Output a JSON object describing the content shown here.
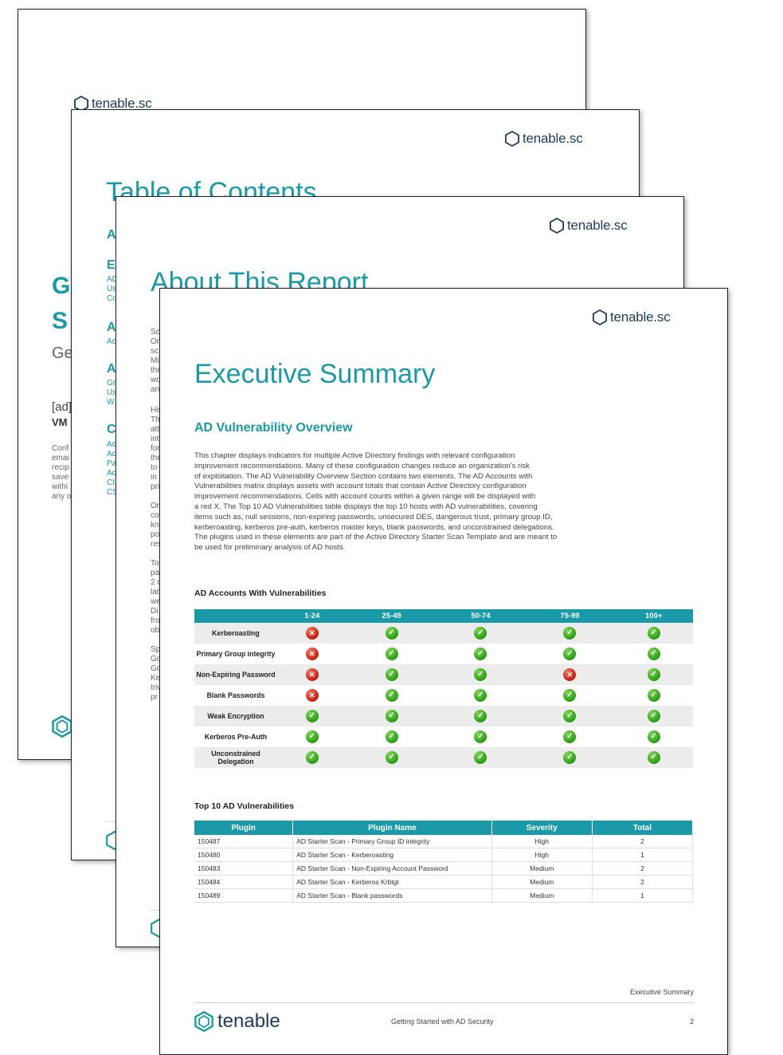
{
  "brand": {
    "logo_text": "tenable.sc",
    "footer_logo_text": "tenable"
  },
  "page1": {
    "frag_g": "G",
    "frag_s": "S",
    "frag_ge": "Ge",
    "frag_ad": "[ad]",
    "frag_vm": "VM",
    "frag_lines": [
      "Conf",
      "emai",
      "recip",
      "save",
      "withi",
      "any o"
    ]
  },
  "page2": {
    "title": "Table of Contents",
    "frag_a1": "A",
    "frag_e": "E",
    "frag_e_lines": [
      "AD",
      "Us",
      "Co"
    ],
    "frag_a2": "A",
    "frag_a2_lines": [
      "Ac"
    ],
    "frag_a3": "A",
    "frag_a3_lines": [
      "Gr",
      "Us",
      "W"
    ],
    "frag_c": "C",
    "frag_c_lines": [
      "Ac",
      "Ac",
      "Pa",
      "Ac",
      "CIS",
      "CS"
    ]
  },
  "page3": {
    "title": "About This Report",
    "frag_lines_1": [
      "Sc",
      "Or",
      "sc",
      "Mi",
      "the",
      "wo",
      "an"
    ],
    "frag_lines_2": [
      "His",
      "Th",
      "att",
      "int",
      "for",
      "the",
      "to",
      "in",
      "pri"
    ],
    "frag_lines_3": [
      "Or",
      "co",
      "kn",
      "po",
      "res"
    ],
    "frag_lines_4": [
      "To",
      "pa",
      "2 c",
      "lat",
      "we",
      "Di",
      "fro",
      "ob"
    ],
    "frag_lines_5": [
      "Sp",
      "Go",
      "Go",
      "Ke",
      "triv",
      "pr"
    ]
  },
  "page4": {
    "title": "Executive Summary",
    "subtitle": "AD Vulnerability Overview",
    "intro_lines": [
      "This chapter displays indicators for multiple Active Directory findings with relevant configuration",
      "improvement recommendations. Many of these configuration changes reduce an organization's risk",
      "of exploitation. The AD Vulnerability Overview Section contains two elements. The AD Accounts with",
      "Vulnerabilities matrix displays assets with account totals that contain Active Directory configuration",
      "improvement recommendations. Cells with account counts within a given range will be displayed with",
      "a red X. The Top 10 AD Vulnerabilities table displays the top 10 hosts with AD vulnerabilities, covering",
      "items such as, null sessions, non-expiring passwords, unsecured DES, dangerous trust, primary group ID,",
      "kerberoasting, kerberos pre-auth, kerberos master keys, blank passwords, and unconstrained delegations.",
      "The plugins used in these elements are part of the Active Directory Starter Scan Template and are meant to",
      "be used for preliminary analysis of AD hosts."
    ],
    "matrix": {
      "title": "AD Accounts With Vulnerabilities",
      "columns": [
        "",
        "1-24",
        "25-49",
        "50-74",
        "75-99",
        "100+"
      ],
      "rows": [
        {
          "label": "Kerberoasting",
          "cells": [
            "bad",
            "ok",
            "ok",
            "ok",
            "ok"
          ]
        },
        {
          "label": "Primary Group integrity",
          "cells": [
            "bad",
            "ok",
            "ok",
            "ok",
            "ok"
          ]
        },
        {
          "label": "Non-Expiring Password",
          "cells": [
            "bad",
            "ok",
            "ok",
            "bad",
            "ok"
          ]
        },
        {
          "label": "Blank Passwords",
          "cells": [
            "bad",
            "ok",
            "ok",
            "ok",
            "ok"
          ]
        },
        {
          "label": "Weak Encryption",
          "cells": [
            "ok",
            "ok",
            "ok",
            "ok",
            "ok"
          ]
        },
        {
          "label": "Kerberos Pre-Auth",
          "cells": [
            "ok",
            "ok",
            "ok",
            "ok",
            "ok"
          ]
        },
        {
          "label": "Unconstrained Delegation",
          "cells": [
            "ok",
            "ok",
            "ok",
            "ok",
            "ok"
          ]
        }
      ]
    },
    "top10": {
      "title": "Top 10 AD Vulnerabilities",
      "columns": [
        "Plugin",
        "Plugin Name",
        "Severity",
        "Total"
      ],
      "rows": [
        [
          "150487",
          "AD Starter Scan - Primary Group ID integrity",
          "High",
          "2"
        ],
        [
          "150480",
          "AD Starter Scan - Kerberoasting",
          "High",
          "1"
        ],
        [
          "150483",
          "AD Starter Scan - Non-Expiring Account Password",
          "Medium",
          "2"
        ],
        [
          "150484",
          "AD Starter Scan - Kerberos Krbtgt",
          "Medium",
          "2"
        ],
        [
          "150489",
          "AD Starter Scan - Blank passwords",
          "Medium",
          "1"
        ]
      ]
    },
    "footer": {
      "section": "Executive Summary",
      "doc_title": "Getting Started with AD Security",
      "page_number": "2"
    }
  },
  "colors": {
    "accent": "#1a9aa8",
    "ok": "#2a9b14",
    "bad": "#c41d0e",
    "brand_dark": "#1e3a5f"
  },
  "icons": {
    "ok": "green-check-icon",
    "bad": "red-x-icon"
  }
}
